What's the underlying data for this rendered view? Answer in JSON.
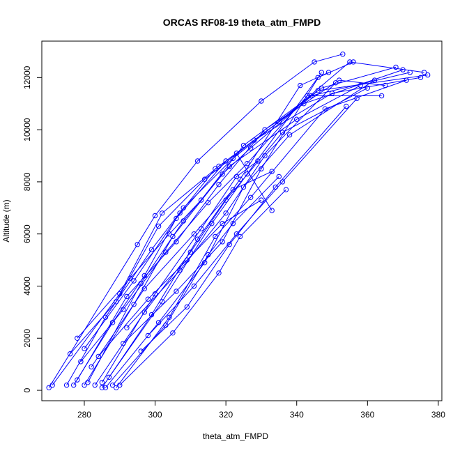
{
  "chart_data": {
    "type": "line",
    "title": "ORCAS RF08-19 theta_atm_FMPD",
    "xlabel": "theta_atm_FMPD",
    "ylabel": "Altitude (m)",
    "xlim": [
      268,
      381
    ],
    "ylim": [
      -400,
      13400
    ],
    "x_ticks": [
      280,
      300,
      320,
      340,
      360,
      380
    ],
    "y_ticks": [
      0,
      2000,
      4000,
      6000,
      8000,
      10000,
      12000
    ],
    "grid": false,
    "legend": "none",
    "series_color": "#0000ff",
    "marker": "open-circle",
    "series": [
      {
        "points": [
          [
            270,
            100
          ],
          [
            295,
            5600
          ],
          [
            300,
            6700
          ],
          [
            312,
            8800
          ],
          [
            330,
            11100
          ],
          [
            345,
            12600
          ],
          [
            353,
            12900
          ]
        ]
      },
      {
        "points": [
          [
            271,
            200
          ],
          [
            290,
            3700
          ],
          [
            302,
            6800
          ],
          [
            318,
            8600
          ],
          [
            335,
            10300
          ],
          [
            355,
            12600
          ],
          [
            376,
            12200
          ]
        ]
      },
      {
        "points": [
          [
            275,
            200
          ],
          [
            286,
            2800
          ],
          [
            299,
            5400
          ],
          [
            308,
            7000
          ],
          [
            322,
            8900
          ],
          [
            344,
            11300
          ],
          [
            372,
            12200
          ]
        ]
      },
      {
        "points": [
          [
            276,
            1400
          ],
          [
            289,
            3400
          ],
          [
            301,
            6300
          ],
          [
            314,
            8100
          ],
          [
            328,
            9600
          ],
          [
            350,
            11400
          ],
          [
            375,
            12000
          ]
        ]
      },
      {
        "points": [
          [
            277,
            200
          ],
          [
            288,
            2600
          ],
          [
            297,
            4400
          ],
          [
            306,
            6600
          ],
          [
            320,
            8800
          ],
          [
            342,
            11000
          ],
          [
            370,
            12300
          ]
        ]
      },
      {
        "points": [
          [
            278,
            2000
          ],
          [
            293,
            4300
          ],
          [
            304,
            6000
          ],
          [
            313,
            7300
          ],
          [
            325,
            9400
          ],
          [
            347,
            11600
          ],
          [
            368,
            12400
          ]
        ]
      },
      {
        "points": [
          [
            278,
            400
          ],
          [
            292,
            3600
          ],
          [
            306,
            5700
          ],
          [
            318,
            7900
          ],
          [
            331,
            10000
          ],
          [
            352,
            11900
          ],
          [
            365,
            11700
          ]
        ]
      },
      {
        "points": [
          [
            279,
            1100
          ],
          [
            291,
            3100
          ],
          [
            303,
            5300
          ],
          [
            315,
            7200
          ],
          [
            326,
            8700
          ],
          [
            343,
            11300
          ],
          [
            364,
            11300
          ]
        ]
      },
      {
        "points": [
          [
            280,
            200
          ],
          [
            294,
            3300
          ],
          [
            305,
            5900
          ],
          [
            319,
            8300
          ],
          [
            327,
            9300
          ],
          [
            346,
            11500
          ],
          [
            377,
            12100
          ]
        ]
      },
      {
        "points": [
          [
            280,
            1600
          ],
          [
            294,
            4200
          ],
          [
            307,
            6800
          ],
          [
            317,
            8500
          ],
          [
            323,
            9100
          ],
          [
            333,
            6900
          ]
        ]
      },
      {
        "points": [
          [
            281,
            300
          ],
          [
            296,
            4100
          ],
          [
            308,
            6500
          ],
          [
            321,
            8600
          ],
          [
            340,
            10400
          ],
          [
            358,
            11700
          ]
        ]
      },
      {
        "points": [
          [
            282,
            900
          ],
          [
            297,
            3900
          ],
          [
            311,
            6000
          ],
          [
            322,
            7700
          ],
          [
            333,
            8400
          ]
        ]
      },
      {
        "points": [
          [
            283,
            200
          ],
          [
            297,
            3000
          ],
          [
            310,
            5300
          ],
          [
            320,
            7300
          ],
          [
            336,
            9900
          ],
          [
            360,
            11600
          ]
        ]
      },
      {
        "points": [
          [
            284,
            1300
          ],
          [
            298,
            3500
          ],
          [
            309,
            5000
          ],
          [
            319,
            6400
          ],
          [
            330,
            7300
          ]
        ]
      },
      {
        "points": [
          [
            285,
            100
          ],
          [
            299,
            2900
          ],
          [
            312,
            5800
          ],
          [
            324,
            8100
          ],
          [
            341,
            11700
          ],
          [
            349,
            12200
          ]
        ]
      },
      {
        "points": [
          [
            285,
            300
          ],
          [
            300,
            3700
          ],
          [
            313,
            6200
          ],
          [
            323,
            8200
          ],
          [
            329,
            8800
          ]
        ]
      },
      {
        "points": [
          [
            286,
            100
          ],
          [
            301,
            2600
          ],
          [
            314,
            4900
          ],
          [
            325,
            7800
          ],
          [
            338,
            9800
          ],
          [
            362,
            11900
          ]
        ]
      },
      {
        "points": [
          [
            287,
            500
          ],
          [
            302,
            3400
          ],
          [
            316,
            6400
          ],
          [
            326,
            8300
          ],
          [
            346,
            12000
          ],
          [
            356,
            12600
          ]
        ]
      },
      {
        "points": [
          [
            288,
            200
          ],
          [
            303,
            2500
          ],
          [
            315,
            5200
          ],
          [
            322,
            6400
          ],
          [
            335,
            8200
          ]
        ]
      },
      {
        "points": [
          [
            289,
            100
          ],
          [
            304,
            2800
          ],
          [
            317,
            5900
          ],
          [
            327,
            7400
          ],
          [
            348,
            10800
          ],
          [
            371,
            11900
          ]
        ]
      },
      {
        "points": [
          [
            290,
            200
          ],
          [
            305,
            2200
          ],
          [
            318,
            4500
          ],
          [
            324,
            5900
          ],
          [
            337,
            7700
          ]
        ]
      },
      {
        "points": [
          [
            291,
            1800
          ],
          [
            306,
            3800
          ],
          [
            319,
            5700
          ],
          [
            330,
            8500
          ],
          [
            347,
            12200
          ]
        ]
      },
      {
        "points": [
          [
            292,
            2400
          ],
          [
            307,
            4600
          ],
          [
            320,
            6800
          ],
          [
            331,
            9000
          ],
          [
            351,
            11800
          ]
        ]
      },
      {
        "points": [
          [
            296,
            1500
          ],
          [
            309,
            3200
          ],
          [
            321,
            5600
          ],
          [
            334,
            7800
          ],
          [
            354,
            10900
          ]
        ]
      },
      {
        "points": [
          [
            298,
            2100
          ],
          [
            311,
            4000
          ],
          [
            323,
            6000
          ],
          [
            336,
            8000
          ],
          [
            357,
            11200
          ]
        ]
      }
    ]
  }
}
